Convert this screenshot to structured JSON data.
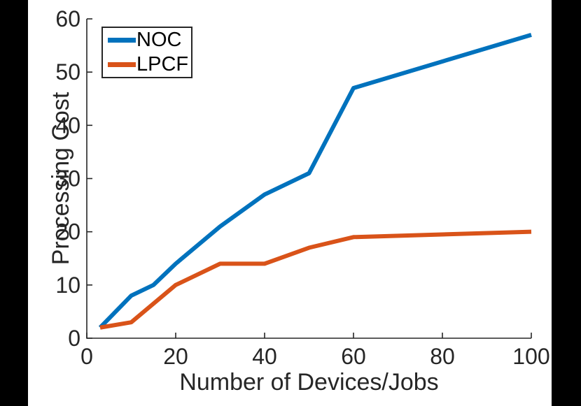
{
  "canvas": {
    "background": "#000000",
    "figure_background": "#ffffff",
    "axis_color": "#262626"
  },
  "legend": {
    "items": [
      {
        "label": "NOC",
        "color": "#0072BD"
      },
      {
        "label": "LPCF",
        "color": "#D95319"
      }
    ]
  },
  "chart_data": {
    "type": "line",
    "title": "",
    "xlabel": "Number of Devices/Jobs",
    "ylabel": "Processing Cost",
    "xlim": [
      0,
      100
    ],
    "ylim": [
      0,
      60
    ],
    "xticks": [
      0,
      20,
      40,
      60,
      80,
      100
    ],
    "yticks": [
      0,
      10,
      20,
      30,
      40,
      50,
      60
    ],
    "grid": false,
    "legend_position": "top-left",
    "series": [
      {
        "name": "NOC",
        "color": "#0072BD",
        "x": [
          3,
          10,
          15,
          20,
          30,
          40,
          50,
          60,
          100
        ],
        "y": [
          2,
          8,
          10,
          14,
          21,
          27,
          31,
          47,
          57
        ]
      },
      {
        "name": "LPCF",
        "color": "#D95319",
        "x": [
          3,
          10,
          20,
          30,
          40,
          50,
          60,
          100
        ],
        "y": [
          2,
          3,
          10,
          14,
          14,
          17,
          19,
          20
        ]
      }
    ]
  }
}
